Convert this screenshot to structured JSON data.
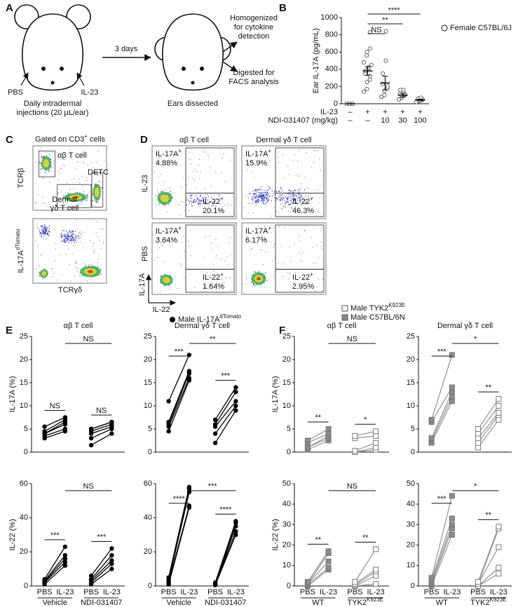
{
  "panel_labels": [
    "A",
    "B",
    "C",
    "D",
    "E",
    "F"
  ],
  "panel_a": {
    "left_sites": [
      "PBS",
      "IL-23"
    ],
    "left_caption": [
      "Daily intradermal",
      "injections (20 μL/ear)"
    ],
    "interval": "3 days",
    "right_caption": "Ears dissected",
    "outcomes": [
      [
        "Homogenized",
        "for cytokine",
        "detection"
      ],
      [
        "Digested for",
        "FACS analysis"
      ]
    ]
  },
  "panel_c": {
    "title": {
      "text": "Gated on CD3",
      "sup": "+",
      "rest": " cells"
    },
    "gates": [
      "αβ T cell",
      "DETC",
      [
        "Dermal",
        "γδ T cell"
      ]
    ],
    "ylabels": [
      {
        "text": "TCRβ"
      },
      {
        "text": "IL-17A",
        "sup": "dTomato"
      }
    ],
    "xlabel": "TCRγδ"
  },
  "panel_d": {
    "columns": [
      "αβ T cell",
      "Dermal γδ T cell"
    ],
    "rows": [
      "IL-23",
      "PBS"
    ],
    "y_axis": "IL-17A",
    "x_axis": "IL-22",
    "plots": [
      [
        {
          "upper": {
            "name": "IL-17A",
            "sup": "+",
            "pct": "4.88%"
          },
          "lower": {
            "name": "IL-22",
            "sup": "+",
            "pct": "20.1%"
          }
        },
        {
          "upper": {
            "name": "IL-17A",
            "sup": "+",
            "pct": "15.9%"
          },
          "lower": {
            "name": "IL-22",
            "sup": "+",
            "pct": "46.3%"
          }
        }
      ],
      [
        {
          "upper": {
            "name": "IL-17A",
            "sup": "+",
            "pct": "3.64%"
          },
          "lower": {
            "name": "IL-22",
            "sup": "+",
            "pct": "1.64%"
          }
        },
        {
          "upper": {
            "name": "IL-17A",
            "sup": "+",
            "pct": "6.17%"
          },
          "lower": {
            "name": "IL-22",
            "sup": "+",
            "pct": "2.95%"
          }
        }
      ]
    ]
  },
  "legend_e": [
    {
      "name": "Male IL-17A",
      "sup": "dTomato",
      "marker": "circle",
      "color": "#000000"
    }
  ],
  "legend_f": [
    {
      "name": "Male TYK2",
      "sup": "K923E",
      "marker": "square",
      "color": "#ffffff"
    },
    {
      "name": "Male C57BL/6N",
      "marker": "square",
      "color": "#8c8c8c"
    }
  ],
  "chart_data": [
    {
      "type": "dot",
      "ylabel": "Ear IL-17A (pg/mL)",
      "ylim": [
        0,
        1000
      ],
      "yticks": [
        0,
        200,
        400,
        600,
        800,
        1000
      ],
      "color": "#555555",
      "legend": "Female C57BL/6J",
      "table": [
        {
          "label": "IL-23",
          "cells": [
            "–",
            "+",
            "+",
            "+",
            "+"
          ]
        },
        {
          "label": "NDI-031407 (mg/kg)",
          "cells": [
            "–",
            "–",
            "10",
            "30",
            "100"
          ]
        }
      ],
      "groups": [
        [
          0,
          0,
          0,
          0,
          0
        ],
        [
          140,
          170,
          250,
          280,
          320,
          350,
          380,
          400,
          420,
          450,
          480,
          560,
          600,
          640,
          830
        ],
        [
          80,
          100,
          150,
          180,
          200,
          230,
          350,
          500,
          840
        ],
        [
          50,
          70,
          90,
          100,
          110,
          120,
          160,
          160
        ],
        [
          20,
          30,
          40,
          45,
          50,
          55,
          60,
          70
        ]
      ],
      "mean": [
        0,
        380,
        240,
        100,
        45
      ],
      "sem": [
        0,
        50,
        80,
        20,
        8
      ],
      "sig": [
        {
          "label": "NS",
          "span": [
            1,
            2
          ]
        },
        {
          "label": "**",
          "span": [
            1,
            3
          ]
        },
        {
          "label": "****",
          "span": [
            1,
            4
          ]
        }
      ]
    },
    {
      "type": "paired",
      "title": "αβ T cell",
      "ylabel": "IL-17A (%)",
      "ylim": [
        0,
        25
      ],
      "yticks": [
        0,
        5,
        10,
        15,
        20,
        25
      ],
      "line_color": "#000000",
      "groups": [
        {
          "marker": "circle",
          "fill": "#000000",
          "before": [
            3,
            3.5,
            4,
            4,
            4.5,
            5.5
          ],
          "after": [
            4.5,
            5,
            6,
            6.5,
            7,
            7.5
          ]
        },
        {
          "marker": "circle",
          "fill": "#000000",
          "before": [
            1.5,
            3,
            4,
            4.5,
            5,
            5
          ],
          "after": [
            4,
            5,
            5.5,
            6,
            6.5,
            6.5
          ]
        }
      ],
      "sig": [
        {
          "label": "NS",
          "span": [
            0,
            1
          ]
        },
        {
          "label": "NS",
          "span": [
            2,
            3
          ]
        },
        {
          "label": "NS",
          "span": [
            1,
            3
          ]
        }
      ]
    },
    {
      "type": "paired",
      "title": "Dermal γδ T cell",
      "ylim": [
        0,
        25
      ],
      "yticks": [
        0,
        5,
        10,
        15,
        20,
        25
      ],
      "line_color": "#000000",
      "groups": [
        {
          "marker": "circle",
          "fill": "#000000",
          "before": [
            4.5,
            5.5,
            6,
            6.5,
            11
          ],
          "after": [
            15.5,
            16,
            17,
            17.5,
            21
          ]
        },
        {
          "marker": "circle",
          "fill": "#000000",
          "before": [
            2,
            4,
            5.5,
            6,
            7
          ],
          "after": [
            9,
            10,
            11,
            13,
            14
          ]
        }
      ],
      "sig": [
        {
          "label": "***",
          "span": [
            0,
            1
          ]
        },
        {
          "label": "***",
          "span": [
            2,
            3
          ]
        },
        {
          "label": "**",
          "span": [
            1,
            3
          ]
        }
      ]
    },
    {
      "type": "paired",
      "ylabel": "IL-22 (%)",
      "ylim": [
        0,
        60
      ],
      "yticks": [
        0,
        20,
        40,
        60
      ],
      "line_color": "#000000",
      "categories": [
        "PBS",
        "IL-23",
        "PBS",
        "IL-23"
      ],
      "groups": [
        {
          "label": "Vehicle",
          "marker": "circle",
          "fill": "#000000",
          "before": [
            1,
            2,
            2.5,
            3,
            4
          ],
          "after": [
            12,
            14,
            16,
            18,
            23
          ]
        },
        {
          "label": "NDI-031407",
          "marker": "circle",
          "fill": "#000000",
          "before": [
            1,
            2,
            3,
            4,
            6
          ],
          "after": [
            10,
            13,
            15,
            18,
            22
          ]
        }
      ],
      "sig": [
        {
          "label": "***",
          "span": [
            0,
            1
          ]
        },
        {
          "label": "***",
          "span": [
            2,
            3
          ]
        },
        {
          "label": "NS",
          "span": [
            1,
            3
          ]
        }
      ]
    },
    {
      "type": "paired",
      "ylim": [
        0,
        60
      ],
      "yticks": [
        0,
        20,
        40,
        60
      ],
      "line_color": "#000000",
      "categories": [
        "PBS",
        "IL-23",
        "PBS",
        "IL-23"
      ],
      "groups": [
        {
          "label": "Vehicle",
          "marker": "circle",
          "fill": "#000000",
          "before": [
            1,
            2,
            3,
            4,
            5
          ],
          "after": [
            46,
            47,
            55,
            57,
            58
          ]
        },
        {
          "label": "NDI-031407",
          "marker": "circle",
          "fill": "#000000",
          "before": [
            0.5,
            1,
            1,
            1.5,
            2
          ],
          "after": [
            30,
            32,
            35,
            37,
            38
          ]
        }
      ],
      "sig": [
        {
          "label": "****",
          "span": [
            0,
            1
          ]
        },
        {
          "label": "****",
          "span": [
            2,
            3
          ]
        },
        {
          "label": "***",
          "span": [
            1,
            3
          ]
        }
      ]
    },
    {
      "type": "paired",
      "title": "αβ T cell",
      "ylabel": "IL-17A (%)",
      "ylim": [
        0,
        25
      ],
      "yticks": [
        0,
        5,
        10,
        15,
        20,
        25
      ],
      "line_color": "#9a9a9a",
      "groups": [
        {
          "marker": "square",
          "fill": "#8c8c8c",
          "before": [
            0.5,
            1,
            1,
            2,
            2.5
          ],
          "after": [
            2.5,
            3,
            3.5,
            4,
            5
          ]
        },
        {
          "marker": "square",
          "fill": "#ffffff",
          "before": [
            0,
            0,
            0.3,
            3,
            3.5
          ],
          "after": [
            0.5,
            1,
            2,
            3.5,
            4.5
          ]
        }
      ],
      "sig": [
        {
          "label": "**",
          "span": [
            0,
            1
          ]
        },
        {
          "label": "*",
          "span": [
            2,
            3
          ]
        },
        {
          "label": "NS",
          "span": [
            1,
            3
          ]
        }
      ]
    },
    {
      "type": "paired",
      "title": "Dermal γδ T cell",
      "ylim": [
        0,
        25
      ],
      "yticks": [
        0,
        5,
        10,
        15,
        20,
        25
      ],
      "line_color": "#9a9a9a",
      "groups": [
        {
          "marker": "square",
          "fill": "#8c8c8c",
          "before": [
            2,
            2.5,
            3,
            6.5,
            7
          ],
          "after": [
            11,
            12,
            13,
            14,
            21
          ]
        },
        {
          "marker": "square",
          "fill": "#ffffff",
          "before": [
            1,
            2,
            3,
            4,
            5
          ],
          "after": [
            7,
            8,
            8.5,
            10,
            11.5
          ]
        }
      ],
      "sig": [
        {
          "label": "***",
          "span": [
            0,
            1
          ]
        },
        {
          "label": "**",
          "span": [
            2,
            3
          ]
        },
        {
          "label": "*",
          "span": [
            1,
            3
          ]
        }
      ]
    },
    {
      "type": "paired",
      "ylabel": "IL-22 (%)",
      "ylim": [
        0,
        50
      ],
      "yticks": [
        0,
        10,
        20,
        30,
        40,
        50
      ],
      "line_color": "#9a9a9a",
      "categories": [
        "PBS",
        "IL-23",
        "PBS",
        "IL-23"
      ],
      "groups": [
        {
          "label": "WT",
          "marker": "square",
          "fill": "#8c8c8c",
          "before": [
            0,
            0.5,
            1,
            1,
            2
          ],
          "after": [
            8,
            9,
            12,
            16,
            17
          ]
        },
        {
          "label": "TYK2",
          "label_sup": "K923E",
          "marker": "square",
          "fill": "#ffffff",
          "before": [
            0,
            0,
            0.5,
            1,
            2
          ],
          "after": [
            1,
            5,
            7,
            8,
            18
          ]
        }
      ],
      "sig": [
        {
          "label": "**",
          "span": [
            0,
            1
          ]
        },
        {
          "label": "**",
          "span": [
            2,
            3
          ]
        },
        {
          "label": "NS",
          "span": [
            1,
            3
          ]
        }
      ]
    },
    {
      "type": "paired",
      "ylim": [
        0,
        50
      ],
      "yticks": [
        0,
        10,
        20,
        30,
        40,
        50
      ],
      "line_color": "#9a9a9a",
      "categories": [
        "PBS",
        "IL-23",
        "PBS",
        "IL-23"
      ],
      "groups": [
        {
          "label": "WT",
          "marker": "square",
          "fill": "#8c8c8c",
          "before": [
            0,
            1,
            2,
            3,
            4
          ],
          "after": [
            25,
            28,
            30,
            33,
            44
          ]
        },
        {
          "label": "TYK2",
          "label_sup": "K923E",
          "marker": "square",
          "fill": "#ffffff",
          "before": [
            0,
            0,
            1,
            1,
            2
          ],
          "after": [
            6,
            9,
            19,
            28,
            29
          ]
        }
      ],
      "sig": [
        {
          "label": "***",
          "span": [
            0,
            1
          ]
        },
        {
          "label": "**",
          "span": [
            2,
            3
          ]
        },
        {
          "label": "*",
          "span": [
            1,
            3
          ]
        }
      ]
    }
  ]
}
